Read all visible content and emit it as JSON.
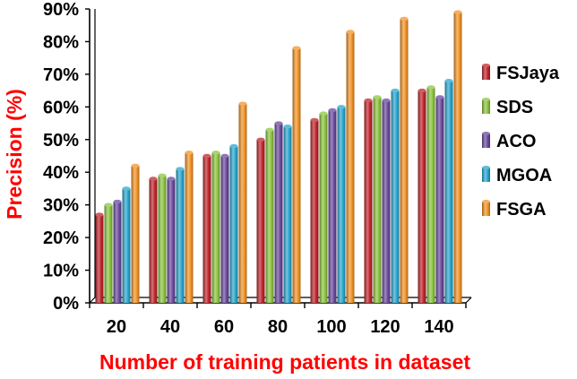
{
  "chart_data": {
    "type": "bar",
    "title": "",
    "xlabel": "Number of training patients in dataset",
    "ylabel": "Precision (%)",
    "categories": [
      "20",
      "40",
      "60",
      "80",
      "100",
      "120",
      "140"
    ],
    "ylim": [
      0,
      90
    ],
    "yticks": [
      0,
      10,
      20,
      30,
      40,
      50,
      60,
      70,
      80,
      90
    ],
    "ytick_labels": [
      "0%",
      "10%",
      "20%",
      "30%",
      "40%",
      "50%",
      "60%",
      "70%",
      "80%",
      "90%"
    ],
    "grid": false,
    "legend_position": "right",
    "series": [
      {
        "name": "FSJaya",
        "color": "#c0262c",
        "values": [
          27,
          38,
          45,
          50,
          56,
          62,
          65
        ]
      },
      {
        "name": "SDS",
        "color": "#8cc53f",
        "values": [
          30,
          39,
          46,
          53,
          58,
          63,
          66
        ]
      },
      {
        "name": "ACO",
        "color": "#6a4a9e",
        "values": [
          31,
          38,
          45,
          55,
          59,
          62,
          63
        ]
      },
      {
        "name": "MGOA",
        "color": "#2aa7cf",
        "values": [
          35,
          41,
          48,
          54,
          60,
          65,
          68
        ]
      },
      {
        "name": "FSGA",
        "color": "#f39426",
        "values": [
          42,
          46,
          61,
          78,
          83,
          87,
          89
        ]
      }
    ]
  }
}
